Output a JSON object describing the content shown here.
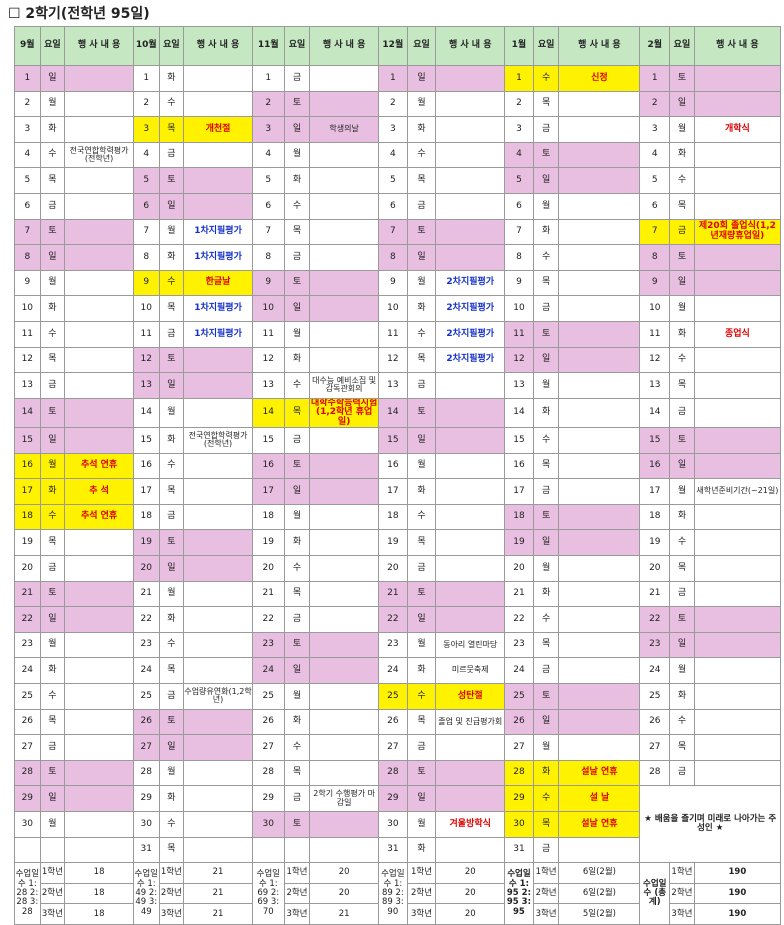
{
  "title": "☐ 2학기(전학년 95일)",
  "headers": {
    "day": "요일",
    "event": "행 사 내 용"
  },
  "months": [
    {
      "label": "9월",
      "days": [
        {
          "d": "1",
          "w": "일",
          "c": "pk"
        },
        {
          "d": "2",
          "w": "월"
        },
        {
          "d": "3",
          "w": "화"
        },
        {
          "d": "4",
          "w": "수",
          "e": "전국연합학력평가(전학년)",
          "s": "blk"
        },
        {
          "d": "5",
          "w": "목"
        },
        {
          "d": "6",
          "w": "금"
        },
        {
          "d": "7",
          "w": "토",
          "c": "pk"
        },
        {
          "d": "8",
          "w": "일",
          "c": "pk"
        },
        {
          "d": "9",
          "w": "월"
        },
        {
          "d": "10",
          "w": "화"
        },
        {
          "d": "11",
          "w": "수"
        },
        {
          "d": "12",
          "w": "목"
        },
        {
          "d": "13",
          "w": "금"
        },
        {
          "d": "14",
          "w": "토",
          "c": "pk"
        },
        {
          "d": "15",
          "w": "일",
          "c": "pk"
        },
        {
          "d": "16",
          "w": "월",
          "c": "yl",
          "e": "추석 연휴",
          "s": "red"
        },
        {
          "d": "17",
          "w": "화",
          "c": "yl",
          "e": "추 석",
          "s": "red"
        },
        {
          "d": "18",
          "w": "수",
          "c": "yl",
          "e": "추석 연휴",
          "s": "red"
        },
        {
          "d": "19",
          "w": "목"
        },
        {
          "d": "20",
          "w": "금"
        },
        {
          "d": "21",
          "w": "토",
          "c": "pk"
        },
        {
          "d": "22",
          "w": "일",
          "c": "pk"
        },
        {
          "d": "23",
          "w": "월"
        },
        {
          "d": "24",
          "w": "화"
        },
        {
          "d": "25",
          "w": "수"
        },
        {
          "d": "26",
          "w": "목"
        },
        {
          "d": "27",
          "w": "금"
        },
        {
          "d": "28",
          "w": "토",
          "c": "pk"
        },
        {
          "d": "29",
          "w": "일",
          "c": "pk"
        },
        {
          "d": "30",
          "w": "월"
        },
        {
          "d": "",
          "w": ""
        }
      ]
    },
    {
      "label": "10월",
      "days": [
        {
          "d": "1",
          "w": "화"
        },
        {
          "d": "2",
          "w": "수"
        },
        {
          "d": "3",
          "w": "목",
          "c": "yl",
          "e": "개천절",
          "s": "red"
        },
        {
          "d": "4",
          "w": "금"
        },
        {
          "d": "5",
          "w": "토",
          "c": "pk"
        },
        {
          "d": "6",
          "w": "일",
          "c": "pk"
        },
        {
          "d": "7",
          "w": "월",
          "e": "1차지필평가",
          "s": "blue"
        },
        {
          "d": "8",
          "w": "화",
          "e": "1차지필평가",
          "s": "blue"
        },
        {
          "d": "9",
          "w": "수",
          "c": "yl",
          "e": "한글날",
          "s": "red"
        },
        {
          "d": "10",
          "w": "목",
          "e": "1차지필평가",
          "s": "blue"
        },
        {
          "d": "11",
          "w": "금",
          "e": "1차지필평가",
          "s": "blue"
        },
        {
          "d": "12",
          "w": "토",
          "c": "pk"
        },
        {
          "d": "13",
          "w": "일",
          "c": "pk"
        },
        {
          "d": "14",
          "w": "월"
        },
        {
          "d": "15",
          "w": "화",
          "e": "전국연합학력평가(전학년)",
          "s": "blk"
        },
        {
          "d": "16",
          "w": "수"
        },
        {
          "d": "17",
          "w": "목"
        },
        {
          "d": "18",
          "w": "금"
        },
        {
          "d": "19",
          "w": "토",
          "c": "pk"
        },
        {
          "d": "20",
          "w": "일",
          "c": "pk"
        },
        {
          "d": "21",
          "w": "월"
        },
        {
          "d": "22",
          "w": "화"
        },
        {
          "d": "23",
          "w": "수"
        },
        {
          "d": "24",
          "w": "목"
        },
        {
          "d": "25",
          "w": "금",
          "e": "수업량유연화(1,2학년)",
          "s": "blk"
        },
        {
          "d": "26",
          "w": "토",
          "c": "pk"
        },
        {
          "d": "27",
          "w": "일",
          "c": "pk"
        },
        {
          "d": "28",
          "w": "월"
        },
        {
          "d": "29",
          "w": "화"
        },
        {
          "d": "30",
          "w": "수"
        },
        {
          "d": "31",
          "w": "목"
        }
      ]
    },
    {
      "label": "11월",
      "days": [
        {
          "d": "1",
          "w": "금"
        },
        {
          "d": "2",
          "w": "토",
          "c": "pk"
        },
        {
          "d": "3",
          "w": "일",
          "c": "pk",
          "e": "학생의날",
          "s": "blk"
        },
        {
          "d": "4",
          "w": "월"
        },
        {
          "d": "5",
          "w": "화"
        },
        {
          "d": "6",
          "w": "수"
        },
        {
          "d": "7",
          "w": "목"
        },
        {
          "d": "8",
          "w": "금"
        },
        {
          "d": "9",
          "w": "토",
          "c": "pk"
        },
        {
          "d": "10",
          "w": "일",
          "c": "pk"
        },
        {
          "d": "11",
          "w": "월"
        },
        {
          "d": "12",
          "w": "화"
        },
        {
          "d": "13",
          "w": "수",
          "e": "대수능 예비소집 및 감독관회의",
          "s": "blk"
        },
        {
          "d": "14",
          "w": "목",
          "c": "yl",
          "e": "대학수학능력시험(1,2학년 휴업일)",
          "s": "red"
        },
        {
          "d": "15",
          "w": "금"
        },
        {
          "d": "16",
          "w": "토",
          "c": "pk"
        },
        {
          "d": "17",
          "w": "일",
          "c": "pk"
        },
        {
          "d": "18",
          "w": "월"
        },
        {
          "d": "19",
          "w": "화"
        },
        {
          "d": "20",
          "w": "수"
        },
        {
          "d": "21",
          "w": "목"
        },
        {
          "d": "22",
          "w": "금"
        },
        {
          "d": "23",
          "w": "토",
          "c": "pk"
        },
        {
          "d": "24",
          "w": "일",
          "c": "pk"
        },
        {
          "d": "25",
          "w": "월"
        },
        {
          "d": "26",
          "w": "화"
        },
        {
          "d": "27",
          "w": "수"
        },
        {
          "d": "28",
          "w": "목"
        },
        {
          "d": "29",
          "w": "금",
          "e": "2학기 수행평가 마감일",
          "s": "blk"
        },
        {
          "d": "30",
          "w": "토",
          "c": "pk"
        },
        {
          "d": "",
          "w": ""
        }
      ]
    },
    {
      "label": "12월",
      "days": [
        {
          "d": "1",
          "w": "일",
          "c": "pk"
        },
        {
          "d": "2",
          "w": "월"
        },
        {
          "d": "3",
          "w": "화"
        },
        {
          "d": "4",
          "w": "수"
        },
        {
          "d": "5",
          "w": "목"
        },
        {
          "d": "6",
          "w": "금"
        },
        {
          "d": "7",
          "w": "토",
          "c": "pk"
        },
        {
          "d": "8",
          "w": "일",
          "c": "pk"
        },
        {
          "d": "9",
          "w": "월",
          "e": "2차지필평가",
          "s": "blue"
        },
        {
          "d": "10",
          "w": "화",
          "e": "2차지필평가",
          "s": "blue"
        },
        {
          "d": "11",
          "w": "수",
          "e": "2차지필평가",
          "s": "blue"
        },
        {
          "d": "12",
          "w": "목",
          "e": "2차지필평가",
          "s": "blue"
        },
        {
          "d": "13",
          "w": "금"
        },
        {
          "d": "14",
          "w": "토",
          "c": "pk"
        },
        {
          "d": "15",
          "w": "일",
          "c": "pk"
        },
        {
          "d": "16",
          "w": "월"
        },
        {
          "d": "17",
          "w": "화"
        },
        {
          "d": "18",
          "w": "수"
        },
        {
          "d": "19",
          "w": "목"
        },
        {
          "d": "20",
          "w": "금"
        },
        {
          "d": "21",
          "w": "토",
          "c": "pk"
        },
        {
          "d": "22",
          "w": "일",
          "c": "pk"
        },
        {
          "d": "23",
          "w": "월",
          "e": "동아리 열린마당",
          "s": "blk"
        },
        {
          "d": "24",
          "w": "화",
          "e": "미르뭇축제",
          "s": "blk"
        },
        {
          "d": "25",
          "w": "수",
          "c": "yl",
          "e": "성탄절",
          "s": "red"
        },
        {
          "d": "26",
          "w": "목",
          "e": "졸업 및 진급평가회",
          "s": "blk"
        },
        {
          "d": "27",
          "w": "금"
        },
        {
          "d": "28",
          "w": "토",
          "c": "pk"
        },
        {
          "d": "29",
          "w": "일",
          "c": "pk"
        },
        {
          "d": "30",
          "w": "월",
          "e": "겨울방학식",
          "s": "red"
        },
        {
          "d": "31",
          "w": "화"
        }
      ]
    },
    {
      "label": "1월",
      "days": [
        {
          "d": "1",
          "w": "수",
          "c": "yl",
          "e": "신정",
          "s": "red"
        },
        {
          "d": "2",
          "w": "목"
        },
        {
          "d": "3",
          "w": "금"
        },
        {
          "d": "4",
          "w": "토",
          "c": "pk"
        },
        {
          "d": "5",
          "w": "일",
          "c": "pk"
        },
        {
          "d": "6",
          "w": "월"
        },
        {
          "d": "7",
          "w": "화"
        },
        {
          "d": "8",
          "w": "수"
        },
        {
          "d": "9",
          "w": "목"
        },
        {
          "d": "10",
          "w": "금"
        },
        {
          "d": "11",
          "w": "토",
          "c": "pk"
        },
        {
          "d": "12",
          "w": "일",
          "c": "pk"
        },
        {
          "d": "13",
          "w": "월"
        },
        {
          "d": "14",
          "w": "화"
        },
        {
          "d": "15",
          "w": "수"
        },
        {
          "d": "16",
          "w": "목"
        },
        {
          "d": "17",
          "w": "금"
        },
        {
          "d": "18",
          "w": "토",
          "c": "pk"
        },
        {
          "d": "19",
          "w": "일",
          "c": "pk"
        },
        {
          "d": "20",
          "w": "월"
        },
        {
          "d": "21",
          "w": "화"
        },
        {
          "d": "22",
          "w": "수"
        },
        {
          "d": "23",
          "w": "목"
        },
        {
          "d": "24",
          "w": "금"
        },
        {
          "d": "25",
          "w": "토",
          "c": "pk"
        },
        {
          "d": "26",
          "w": "일",
          "c": "pk"
        },
        {
          "d": "27",
          "w": "월"
        },
        {
          "d": "28",
          "w": "화",
          "c": "yl",
          "e": "설날 연휴",
          "s": "red"
        },
        {
          "d": "29",
          "w": "수",
          "c": "yl",
          "e": "설 날",
          "s": "red"
        },
        {
          "d": "30",
          "w": "목",
          "c": "yl",
          "e": "설날 연휴",
          "s": "red"
        },
        {
          "d": "31",
          "w": "금"
        }
      ]
    },
    {
      "label": "2월",
      "days": [
        {
          "d": "1",
          "w": "토",
          "c": "pk"
        },
        {
          "d": "2",
          "w": "일",
          "c": "pk"
        },
        {
          "d": "3",
          "w": "월",
          "e": "개학식",
          "s": "red"
        },
        {
          "d": "4",
          "w": "화"
        },
        {
          "d": "5",
          "w": "수"
        },
        {
          "d": "6",
          "w": "목"
        },
        {
          "d": "7",
          "w": "금",
          "c": "yl",
          "e": "제20회 졸업식(1,2년재량휴업일)",
          "s": "red"
        },
        {
          "d": "8",
          "w": "토",
          "c": "pk"
        },
        {
          "d": "9",
          "w": "일",
          "c": "pk"
        },
        {
          "d": "10",
          "w": "월"
        },
        {
          "d": "11",
          "w": "화",
          "e": "종업식",
          "s": "red"
        },
        {
          "d": "12",
          "w": "수"
        },
        {
          "d": "13",
          "w": "목"
        },
        {
          "d": "14",
          "w": "금"
        },
        {
          "d": "15",
          "w": "토",
          "c": "pk"
        },
        {
          "d": "16",
          "w": "일",
          "c": "pk"
        },
        {
          "d": "17",
          "w": "월",
          "e": "새학년준비기간(~21일)",
          "s": "blk"
        },
        {
          "d": "18",
          "w": "화"
        },
        {
          "d": "19",
          "w": "수"
        },
        {
          "d": "20",
          "w": "목"
        },
        {
          "d": "21",
          "w": "금"
        },
        {
          "d": "22",
          "w": "토",
          "c": "pk"
        },
        {
          "d": "23",
          "w": "일",
          "c": "pk"
        },
        {
          "d": "24",
          "w": "월"
        },
        {
          "d": "25",
          "w": "화"
        },
        {
          "d": "26",
          "w": "수"
        },
        {
          "d": "27",
          "w": "목"
        },
        {
          "d": "28",
          "w": "금"
        }
      ]
    }
  ],
  "motto": "★ 배움을 즐기며 미래로 나아가는 주성인 ★",
  "summary": [
    {
      "label": "수업일수 1: 28 2: 28 3: 28",
      "rows": [
        [
          "1학년",
          "18"
        ],
        [
          "2학년",
          "18"
        ],
        [
          "3학년",
          "18"
        ]
      ]
    },
    {
      "label": "수업일수 1: 49 2: 49 3: 49",
      "rows": [
        [
          "1학년",
          "21"
        ],
        [
          "2학년",
          "21"
        ],
        [
          "3학년",
          "21"
        ]
      ]
    },
    {
      "label": "수업일수 1: 69 2: 69 3: 70",
      "rows": [
        [
          "1학년",
          "20"
        ],
        [
          "2학년",
          "20"
        ],
        [
          "3학년",
          "21"
        ]
      ]
    },
    {
      "label": "수업일수 1: 89 2: 89 3: 90",
      "rows": [
        [
          "1학년",
          "20"
        ],
        [
          "2학년",
          "20"
        ],
        [
          "3학년",
          "20"
        ]
      ]
    },
    {
      "label": "수업일수 1: 95 2: 95 3: 95",
      "rows": [
        [
          "1학년",
          "6일(2월)"
        ],
        [
          "2학년",
          "6일(2월)"
        ],
        [
          "3학년",
          "5일(2월)"
        ]
      ]
    },
    {
      "label": "수업일수 (총계)",
      "rows": [
        [
          "1학년",
          "190"
        ],
        [
          "2학년",
          "190"
        ],
        [
          "3학년",
          "190"
        ]
      ]
    }
  ]
}
